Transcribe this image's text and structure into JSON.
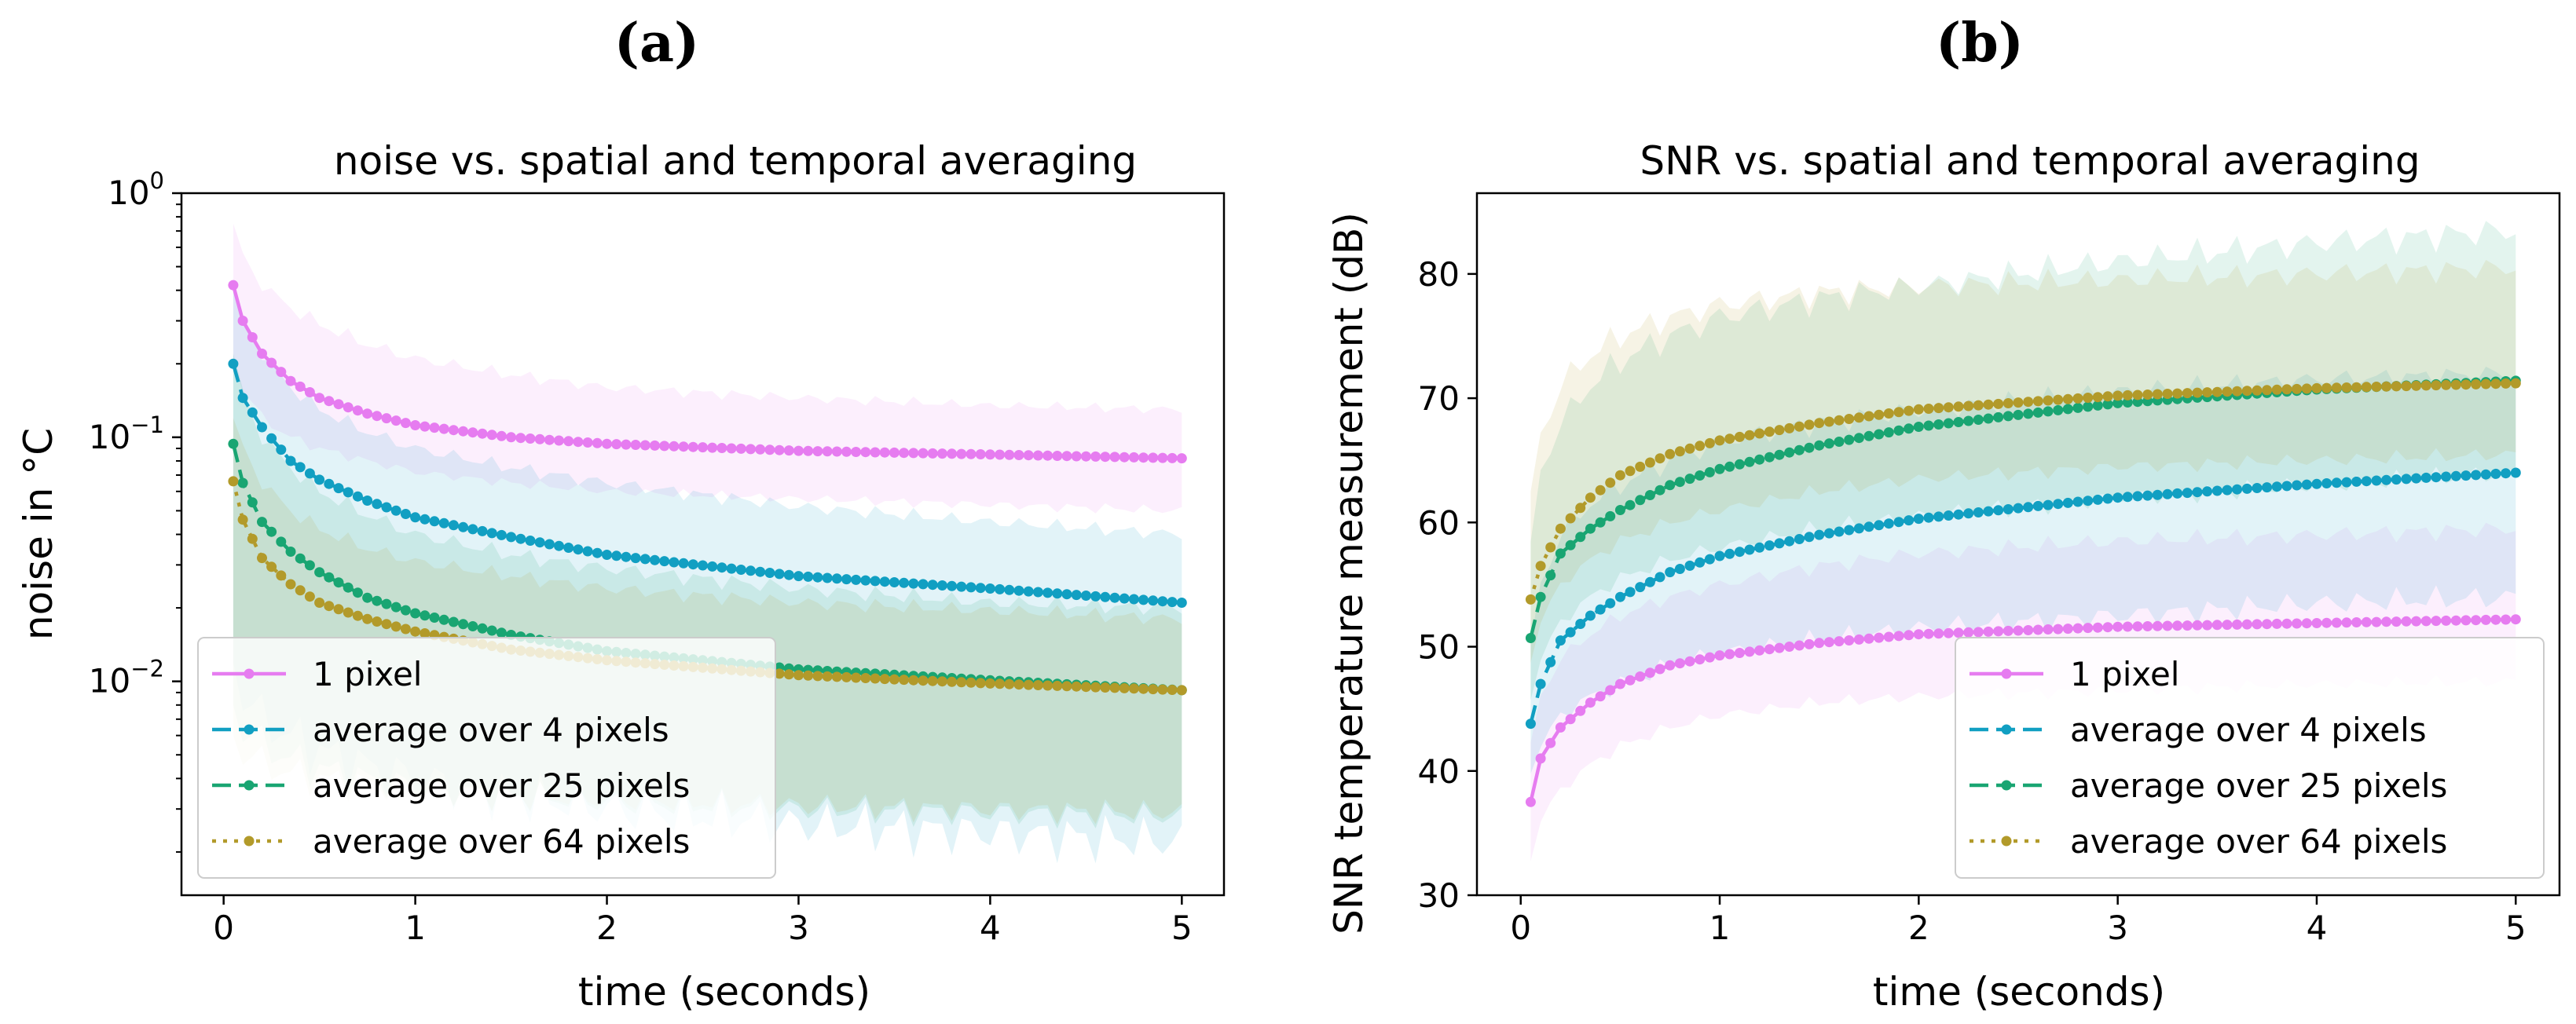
{
  "panels": [
    {
      "label": "(a)"
    },
    {
      "label": "(b)"
    }
  ],
  "colors": {
    "one_pixel": "#e67cf0",
    "four_pixels": "#119fc2",
    "twentyfive_pixels": "#19a572",
    "sixtyfour_pixels": "#b29a2a"
  },
  "chart_data": [
    {
      "type": "line",
      "title": "noise vs. spatial and temporal averaging",
      "xlabel": "time (seconds)",
      "ylabel": "noise in °C",
      "yscale": "log",
      "xlim": [
        -0.22,
        5.22
      ],
      "ylim": [
        0.00133,
        1.0
      ],
      "xticks": [
        0,
        1,
        2,
        3,
        4,
        5
      ],
      "xtick_labels": [
        "0",
        "1",
        "2",
        "3",
        "4",
        "5"
      ],
      "yticks": [
        0.01,
        0.1,
        1.0
      ],
      "ytick_labels": [
        {
          "base": "10",
          "exp": "−2"
        },
        {
          "base": "10",
          "exp": "−1"
        },
        {
          "base": "10",
          "exp": "0"
        }
      ],
      "legend": {
        "position": "lower-left",
        "entries": [
          "1 pixel",
          "average over 4 pixels",
          "average over 25 pixels",
          "average over 64 pixels"
        ]
      },
      "series": [
        {
          "name": "1 pixel",
          "linestyle": "solid",
          "samples": 100,
          "x_start": 0.05,
          "x_end": 5.0,
          "anchors_x": [
            0.05,
            0.1,
            0.2,
            0.35,
            0.5,
            0.75,
            1.0,
            1.5,
            2.0,
            3.0,
            4.0,
            5.0
          ],
          "anchors_y": [
            0.42,
            0.3,
            0.22,
            0.17,
            0.145,
            0.125,
            0.112,
            0.1,
            0.094,
            0.088,
            0.085,
            0.082
          ],
          "band_upper": [
            0.75,
            0.55,
            0.42,
            0.34,
            0.29,
            0.24,
            0.21,
            0.18,
            0.16,
            0.145,
            0.135,
            0.13
          ],
          "band_lower": [
            0.2,
            0.16,
            0.12,
            0.1,
            0.09,
            0.08,
            0.072,
            0.065,
            0.06,
            0.056,
            0.053,
            0.05
          ]
        },
        {
          "name": "average over 4 pixels",
          "linestyle": "dashed",
          "samples": 100,
          "x_start": 0.05,
          "x_end": 5.0,
          "anchors_x": [
            0.05,
            0.1,
            0.2,
            0.35,
            0.5,
            0.75,
            1.0,
            1.5,
            2.0,
            3.0,
            4.0,
            5.0
          ],
          "anchors_y": [
            0.2,
            0.145,
            0.11,
            0.08,
            0.067,
            0.055,
            0.047,
            0.039,
            0.033,
            0.027,
            0.024,
            0.021
          ],
          "band_upper": [
            0.4,
            0.3,
            0.22,
            0.16,
            0.13,
            0.105,
            0.09,
            0.075,
            0.065,
            0.052,
            0.045,
            0.04
          ],
          "band_lower": [
            0.012,
            0.009,
            0.007,
            0.006,
            0.0052,
            0.0045,
            0.004,
            0.0034,
            0.003,
            0.0026,
            0.0024,
            0.0022
          ]
        },
        {
          "name": "average over 25 pixels",
          "linestyle": "dashed",
          "samples": 100,
          "x_start": 0.05,
          "x_end": 5.0,
          "anchors_x": [
            0.05,
            0.1,
            0.2,
            0.35,
            0.5,
            0.75,
            1.0,
            1.5,
            2.0,
            3.0,
            4.0,
            5.0
          ],
          "anchors_y": [
            0.094,
            0.065,
            0.045,
            0.034,
            0.028,
            0.022,
            0.019,
            0.0155,
            0.0133,
            0.0112,
            0.0101,
            0.0092
          ],
          "band_upper": [
            0.22,
            0.15,
            0.1,
            0.075,
            0.06,
            0.048,
            0.04,
            0.033,
            0.029,
            0.024,
            0.021,
            0.02
          ],
          "band_lower": [
            0.008,
            0.0065,
            0.0055,
            0.0048,
            0.0044,
            0.004,
            0.0037,
            0.0034,
            0.0032,
            0.003,
            0.0029,
            0.0028
          ]
        },
        {
          "name": "average over 64 pixels",
          "linestyle": "dotted",
          "samples": 100,
          "x_start": 0.05,
          "x_end": 5.0,
          "anchors_x": [
            0.05,
            0.1,
            0.2,
            0.35,
            0.5,
            0.75,
            1.0,
            1.5,
            2.0,
            3.0,
            4.0,
            5.0
          ],
          "anchors_y": [
            0.066,
            0.046,
            0.032,
            0.025,
            0.021,
            0.018,
            0.016,
            0.0135,
            0.0122,
            0.0106,
            0.0098,
            0.0092
          ],
          "band_upper": [
            0.12,
            0.09,
            0.065,
            0.05,
            0.042,
            0.035,
            0.031,
            0.027,
            0.024,
            0.021,
            0.0195,
            0.018
          ],
          "band_lower": [
            0.006,
            0.0052,
            0.0046,
            0.0042,
            0.004,
            0.0038,
            0.0036,
            0.0034,
            0.0033,
            0.0031,
            0.003,
            0.0029
          ]
        }
      ]
    },
    {
      "type": "line",
      "title": "SNR vs. spatial and temporal averaging",
      "xlabel": "time (seconds)",
      "ylabel": "SNR temperature measurement (dB)",
      "yscale": "linear",
      "xlim": [
        -0.22,
        5.22
      ],
      "ylim": [
        30,
        86.5
      ],
      "xticks": [
        0,
        1,
        2,
        3,
        4,
        5
      ],
      "xtick_labels": [
        "0",
        "1",
        "2",
        "3",
        "4",
        "5"
      ],
      "yticks": [
        30,
        40,
        50,
        60,
        70,
        80
      ],
      "ytick_labels": [
        "30",
        "40",
        "50",
        "60",
        "70",
        "80"
      ],
      "legend": {
        "position": "lower-right",
        "entries": [
          "1 pixel",
          "average over 4 pixels",
          "average over 25 pixels",
          "average over 64 pixels"
        ]
      },
      "series": [
        {
          "name": "1 pixel",
          "linestyle": "solid",
          "samples": 100,
          "x_start": 0.05,
          "x_end": 5.0,
          "anchors_x": [
            0.05,
            0.1,
            0.2,
            0.35,
            0.5,
            0.75,
            1.0,
            1.5,
            2.0,
            3.0,
            4.0,
            5.0
          ],
          "anchors_y": [
            37.5,
            41,
            43.5,
            45.5,
            47,
            48.5,
            49.3,
            50.3,
            51,
            51.6,
            51.9,
            52.2
          ],
          "band_upper": [
            42,
            46,
            49,
            51,
            52.5,
            54,
            55,
            56.5,
            57.5,
            58.5,
            59,
            59.5
          ],
          "band_lower": [
            33,
            36,
            38.5,
            40.5,
            42,
            43.5,
            44.5,
            45.5,
            46,
            46.5,
            47,
            47.2
          ]
        },
        {
          "name": "average over 4 pixels",
          "linestyle": "dashed",
          "samples": 100,
          "x_start": 0.05,
          "x_end": 5.0,
          "anchors_x": [
            0.05,
            0.1,
            0.2,
            0.35,
            0.5,
            0.75,
            1.0,
            1.5,
            2.0,
            3.0,
            4.0,
            5.0
          ],
          "anchors_y": [
            43.8,
            47,
            50.5,
            52.5,
            54,
            56,
            57.3,
            59,
            60.3,
            62,
            63.1,
            64
          ],
          "band_upper": [
            50,
            55,
            59,
            61.5,
            63,
            65,
            66.5,
            68,
            69,
            70.5,
            71.5,
            72
          ],
          "band_lower": [
            40,
            42,
            44.5,
            46,
            47,
            48.5,
            49.5,
            50.5,
            51.5,
            52.5,
            53.5,
            54
          ]
        },
        {
          "name": "average over 25 pixels",
          "linestyle": "dashed",
          "samples": 100,
          "x_start": 0.05,
          "x_end": 5.0,
          "anchors_x": [
            0.05,
            0.1,
            0.2,
            0.35,
            0.5,
            0.75,
            1.0,
            1.5,
            2.0,
            3.0,
            4.0,
            5.0
          ],
          "anchors_y": [
            50.7,
            54,
            57.5,
            59.5,
            61,
            63,
            64.3,
            66.2,
            67.7,
            69.6,
            70.7,
            71.4
          ],
          "band_upper": [
            58,
            64,
            68,
            71,
            73,
            75,
            76.5,
            78,
            79,
            81,
            82.5,
            83.5
          ],
          "band_lower": [
            46,
            49,
            52,
            54,
            55.5,
            57,
            58,
            59.5,
            60.5,
            62,
            63,
            64
          ]
        },
        {
          "name": "average over 64 pixels",
          "linestyle": "dotted",
          "samples": 100,
          "x_start": 0.05,
          "x_end": 5.0,
          "anchors_x": [
            0.05,
            0.1,
            0.2,
            0.35,
            0.5,
            0.75,
            1.0,
            1.5,
            2.0,
            3.0,
            4.0,
            5.0
          ],
          "anchors_y": [
            53.8,
            56.5,
            59.5,
            62,
            63.8,
            65.5,
            66.6,
            68,
            69.1,
            70.2,
            70.8,
            71.2
          ],
          "band_upper": [
            62,
            67,
            71,
            73.5,
            75,
            76.5,
            77.5,
            78.5,
            79,
            79.5,
            80,
            80.5
          ],
          "band_lower": [
            49,
            52,
            55,
            57,
            58.5,
            60,
            61,
            62.5,
            63.5,
            64.5,
            65,
            65.5
          ]
        }
      ]
    }
  ]
}
